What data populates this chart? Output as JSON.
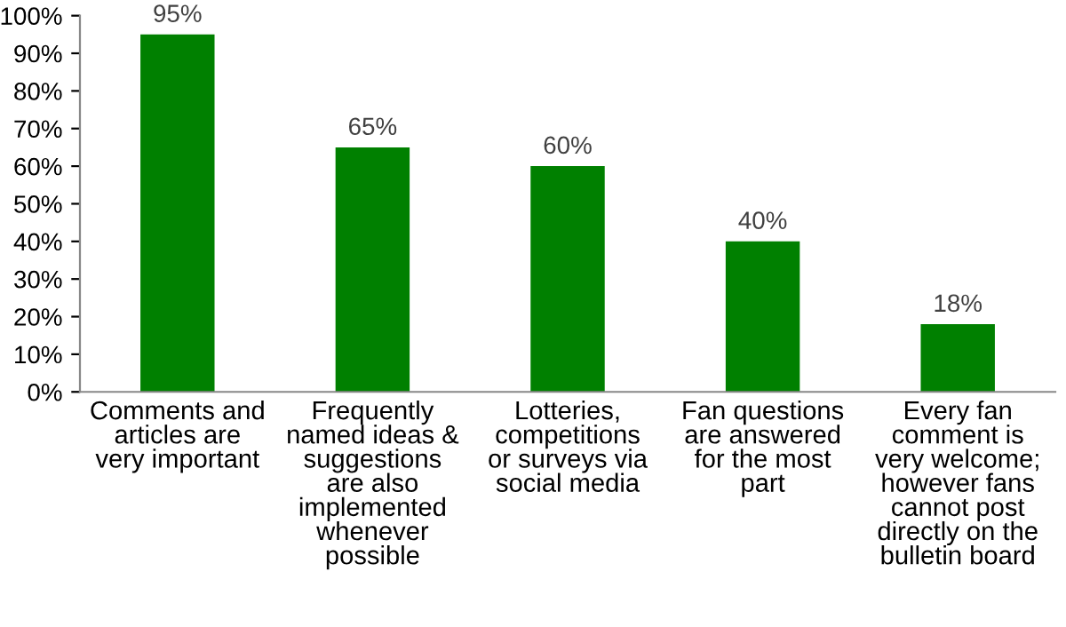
{
  "chart_data": {
    "type": "bar",
    "categories": [
      "Comments and\narticles are\nvery important",
      "Frequently\nnamed ideas &\nsuggestions\nare also\nimplemented\nwhenever\npossible",
      "Lotteries,\ncompetitions\nor surveys via\nsocial media",
      "Fan questions\nare answered\nfor the most\npart",
      "Every fan\ncomment is\nvery welcome;\nhowever fans\ncannot post\ndirectly on the\nbulletin board"
    ],
    "values": [
      95,
      65,
      60,
      40,
      18
    ],
    "value_labels": [
      "95%",
      "65%",
      "60%",
      "40%",
      "18%"
    ],
    "color": "#008000",
    "ylim": [
      0,
      100
    ],
    "yticks": [
      {
        "value": 0,
        "label": "0%"
      },
      {
        "value": 10,
        "label": "10%"
      },
      {
        "value": 20,
        "label": "20%"
      },
      {
        "value": 30,
        "label": "30%"
      },
      {
        "value": 40,
        "label": "40%"
      },
      {
        "value": 50,
        "label": "50%"
      },
      {
        "value": 60,
        "label": "60%"
      },
      {
        "value": 70,
        "label": "70%"
      },
      {
        "value": 80,
        "label": "80%"
      },
      {
        "value": 90,
        "label": "90%"
      },
      {
        "value": 100,
        "label": "100%"
      }
    ],
    "grid": false,
    "legend": false
  }
}
